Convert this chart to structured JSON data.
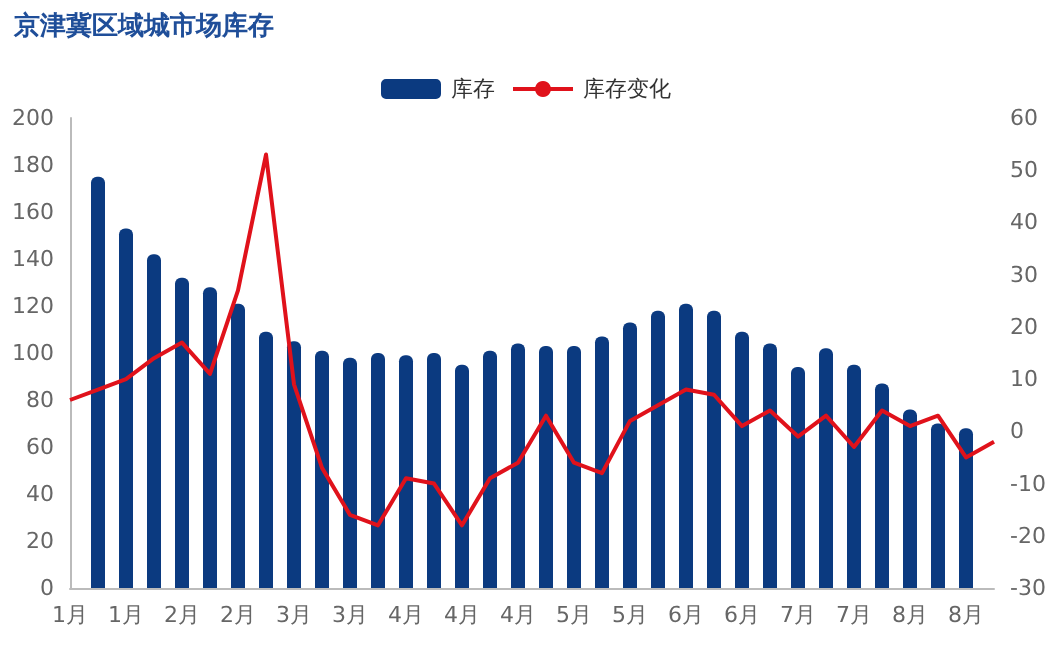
{
  "chart_data": {
    "type": "bar",
    "title": "京津冀区域城市场库存",
    "categories": [
      "1月",
      null,
      "1月",
      null,
      "2月",
      null,
      "2月",
      null,
      "3月",
      null,
      "3月",
      null,
      "4月",
      null,
      "4月",
      null,
      "4月",
      null,
      "5月",
      null,
      "5月",
      null,
      "6月",
      null,
      "6月",
      null,
      "7月",
      null,
      "7月",
      null,
      "8月",
      null,
      "8月",
      null
    ],
    "series": [
      {
        "name": "库存",
        "color": "#0b3a80",
        "values": [
          null,
          175,
          153,
          142,
          132,
          128,
          121,
          109,
          105,
          101,
          98,
          100,
          99,
          100,
          95,
          101,
          104,
          103,
          103,
          107,
          113,
          118,
          121,
          118,
          109,
          104,
          94,
          102,
          95,
          87,
          76,
          70,
          68,
          null
        ]
      },
      {
        "name": "库存变化",
        "type": "line",
        "axis": "y2",
        "color": "#e0121b",
        "values": [
          6,
          8,
          10,
          14,
          17,
          11,
          27,
          53,
          9,
          -7,
          -16,
          -18,
          -9,
          -10,
          -18,
          -9,
          -6,
          3,
          -6,
          -8,
          2,
          5,
          8,
          7,
          1,
          4,
          -1,
          3,
          -3,
          4,
          1,
          3,
          -5,
          -2
        ]
      }
    ],
    "ylim": [
      0,
      200
    ],
    "yticks": [
      0,
      20,
      40,
      60,
      80,
      100,
      120,
      140,
      160,
      180,
      200
    ],
    "y2lim": [
      -30,
      60
    ],
    "y2ticks": [
      -30,
      -20,
      -10,
      0,
      10,
      20,
      30,
      40,
      50,
      60
    ],
    "grid": false,
    "legend": "top",
    "marker": "none"
  }
}
